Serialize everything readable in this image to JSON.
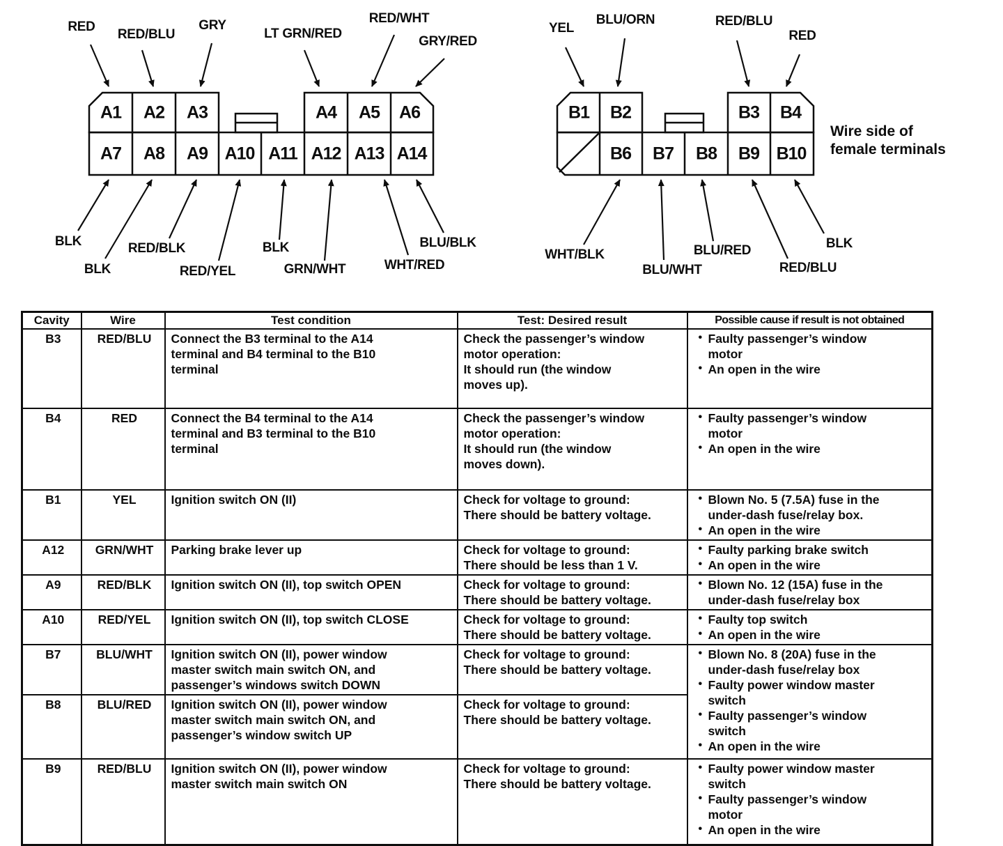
{
  "diagram": {
    "connector_a": {
      "pins_top": [
        "A1",
        "A2",
        "A3",
        "A4",
        "A5",
        "A6"
      ],
      "pins_bottom": [
        "A7",
        "A8",
        "A9",
        "A10",
        "A11",
        "A12",
        "A13",
        "A14"
      ],
      "wires_top": [
        "RED",
        "RED/BLU",
        "GRY",
        "LT GRN/RED",
        "RED/WHT",
        "GRY/RED"
      ],
      "wires_bottom": [
        "BLK",
        "BLK",
        "RED/BLK",
        "RED/YEL",
        "BLK",
        "GRN/WHT",
        "WHT/RED",
        "BLU/BLK"
      ]
    },
    "connector_b": {
      "pins_top": [
        "B1",
        "B2",
        "B3",
        "B4"
      ],
      "pins_bottom": [
        "B6",
        "B7",
        "B8",
        "B9",
        "B10"
      ],
      "wires_top": [
        "YEL",
        "BLU/ORN",
        "RED/BLU",
        "RED"
      ],
      "wires_bottom": [
        "WHT/BLK",
        "BLU/WHT",
        "BLU/RED",
        "RED/BLU",
        "BLK"
      ]
    },
    "note": "Wire side of\nfemale terminals"
  },
  "table": {
    "headers": [
      "Cavity",
      "Wire",
      "Test condition",
      "Test: Desired result",
      "Possible cause if result is not obtained"
    ],
    "rows": [
      {
        "cavity": "B3",
        "wire": "RED/BLU",
        "condition": "Connect the B3 terminal to the A14\nterminal and B4 terminal to the B10\nterminal",
        "result": "Check the passenger’s window\nmotor operation:\nIt should run (the window\nmoves up).",
        "causes": [
          "Faulty passenger’s window\nmotor",
          "An open in the wire"
        ]
      },
      {
        "cavity": "B4",
        "wire": "RED",
        "condition": "Connect the B4 terminal to the A14\nterminal and B3 terminal to the B10\nterminal",
        "result": "Check the passenger’s window\nmotor operation:\nIt should run (the window\nmoves down).",
        "causes": [
          "Faulty passenger’s window\nmotor",
          "An open in the wire"
        ]
      },
      {
        "cavity": "B1",
        "wire": "YEL",
        "condition": "Ignition switch ON (II)",
        "result": "Check for voltage to ground:\nThere should be battery voltage.",
        "causes": [
          "Blown No. 5 (7.5A) fuse in the\nunder-dash fuse/relay box.",
          "An open in the wire"
        ]
      },
      {
        "cavity": "A12",
        "wire": "GRN/WHT",
        "condition": "Parking brake lever up",
        "result": "Check for voltage to ground:\nThere should be less than 1 V.",
        "causes": [
          "Faulty parking brake switch",
          "An open in the wire"
        ]
      },
      {
        "cavity": "A9",
        "wire": "RED/BLK",
        "condition": "Ignition switch ON (II), top switch OPEN",
        "result": "Check for voltage to ground:\nThere should be battery voltage.",
        "causes": [
          "Blown No. 12 (15A) fuse in the\nunder-dash fuse/relay box"
        ]
      },
      {
        "cavity": "A10",
        "wire": "RED/YEL",
        "condition": "Ignition switch ON (II), top switch CLOSE",
        "result": "Check for voltage to ground:\nThere should be battery voltage.",
        "causes": [
          "Faulty top switch",
          "An open in the wire"
        ]
      },
      {
        "cavity": "B7",
        "wire": "BLU/WHT",
        "condition": "Ignition switch ON (II), power window\nmaster switch main switch ON, and\npassenger’s windows switch DOWN",
        "result": "Check for voltage to ground:\nThere should be battery voltage.",
        "causes": [
          "Blown No. 8 (20A) fuse in the\nunder-dash fuse/relay box",
          "Faulty power window master\nswitch",
          "Faulty passenger’s window\nswitch",
          "An open in the wire"
        ],
        "causes_span": 2
      },
      {
        "cavity": "B8",
        "wire": "BLU/RED",
        "condition": "Ignition switch ON (II), power window\nmaster switch main switch ON, and\npassenger’s window switch UP",
        "result": "Check for voltage to ground:\nThere should be battery voltage.",
        "causes": null
      },
      {
        "cavity": "B9",
        "wire": "RED/BLU",
        "condition": "Ignition switch ON (II), power window\nmaster switch main switch ON",
        "result": "Check for voltage to ground:\nThere should be battery voltage.",
        "causes": [
          "Faulty power window master\nswitch",
          "Faulty passenger’s window\nmotor",
          "An open in the wire"
        ]
      }
    ]
  }
}
